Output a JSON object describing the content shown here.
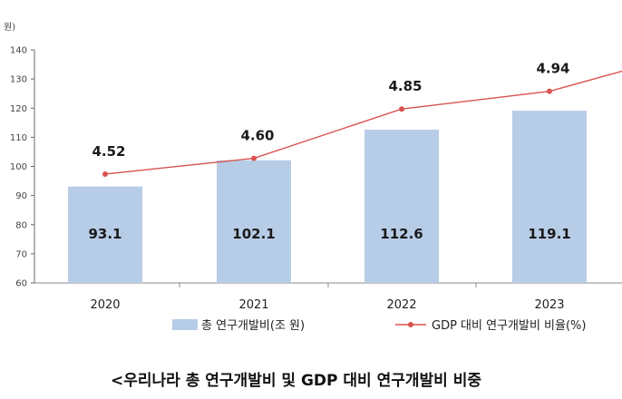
{
  "chart_data": {
    "type": "bar",
    "categories": [
      "2020",
      "2021",
      "2022",
      "2023"
    ],
    "series": [
      {
        "name": "총 연구개발비(조 원)",
        "type": "bar",
        "values": [
          93.1,
          102.1,
          112.6,
          119.1
        ],
        "labels": [
          "93.1",
          "102.1",
          "112.6",
          "119.1"
        ],
        "color": "#b7cce6"
      },
      {
        "name": "GDP 대비 연구개발비 비율(%)",
        "type": "line",
        "values": [
          4.52,
          4.6,
          4.85,
          4.94
        ],
        "labels": [
          "4.52",
          "4.60",
          "4.85",
          "4.94"
        ],
        "color": "#d9534f"
      }
    ],
    "y_unit": "원)",
    "yticks": [
      "60",
      "70",
      "80",
      "90",
      "100",
      "110",
      "120",
      "130",
      "140"
    ],
    "ylim": [
      60,
      140
    ],
    "caption": "<우리나라 총 연구개발비 및 GDP 대비 연구개발비 비중",
    "legend_position": "bottom",
    "grid": false
  }
}
